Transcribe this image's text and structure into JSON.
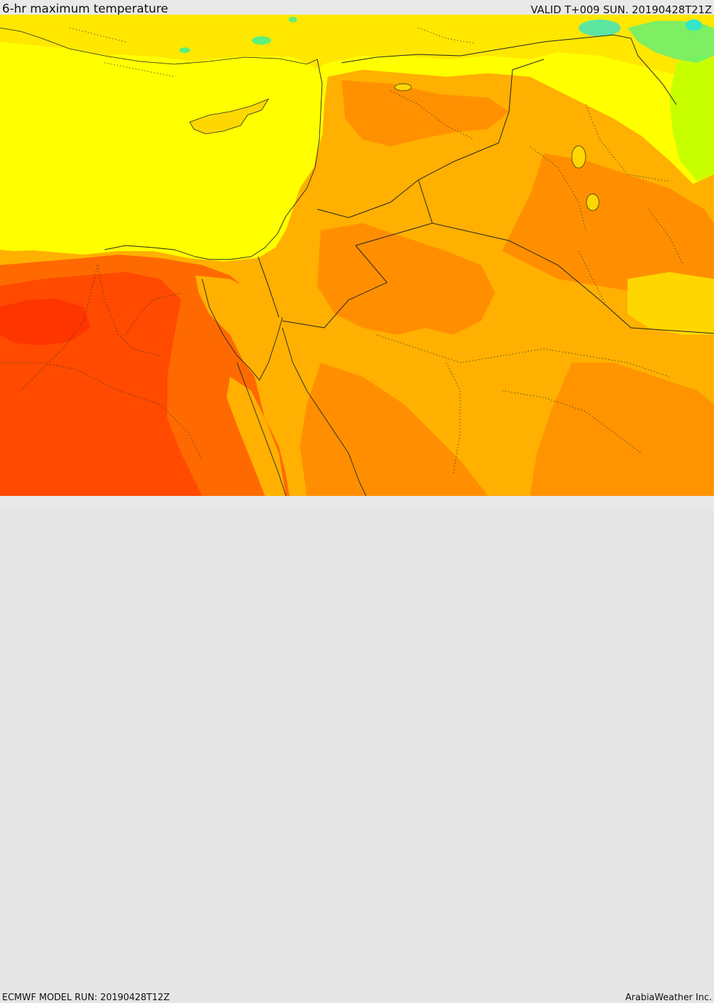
{
  "header": {
    "title": "6-hr maximum temperature",
    "valid": "VALID T+009 SUN. 20190428T21Z"
  },
  "footer": {
    "model_run": "ECMWF MODEL RUN: 20190428T12Z",
    "brand": "ArabiaWeather Inc."
  },
  "map": {
    "palette": {
      "cyan": "#33e6c8",
      "green": "#5ef07a",
      "lime": "#c8ff00",
      "yellow": "#ffff00",
      "gold": "#ffd700",
      "amber": "#ffb000",
      "orange": "#ff8c00",
      "dark_orange": "#ff6a00",
      "red_orange": "#ff4a00",
      "red": "#ff2000"
    }
  }
}
